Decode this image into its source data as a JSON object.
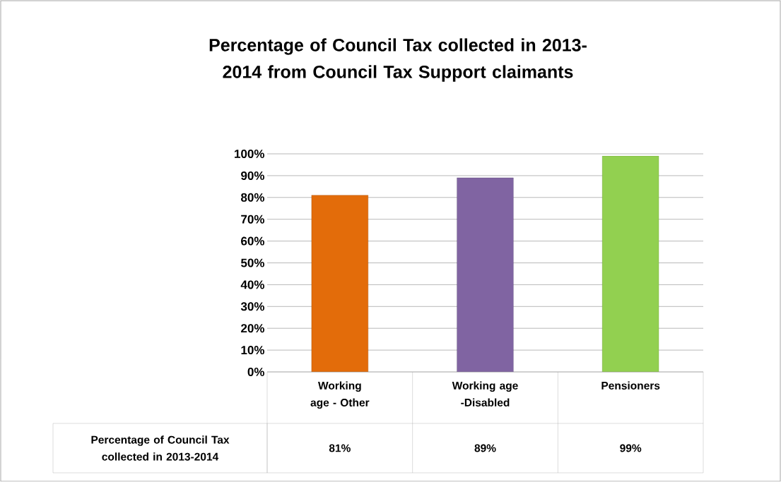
{
  "chart_data": {
    "type": "bar",
    "title": "Percentage of Council Tax collected in 2013-2014 from Council Tax Support claimants",
    "categories": [
      "Working age - Other",
      "Working age -Disabled",
      "Pensioners"
    ],
    "series": [
      {
        "name": "Percentage of Council Tax collected in 2013-2014",
        "values": [
          81,
          89,
          99
        ],
        "colors": [
          "#e36c0a",
          "#8064a2",
          "#92d050"
        ],
        "value_labels": [
          "81%",
          "89%",
          "99%"
        ]
      }
    ],
    "ylim": [
      0,
      100
    ],
    "yticks": [
      {
        "value": 0,
        "label": "0%"
      },
      {
        "value": 10,
        "label": "10%"
      },
      {
        "value": 20,
        "label": "20%"
      },
      {
        "value": 30,
        "label": "30%"
      },
      {
        "value": 40,
        "label": "40%"
      },
      {
        "value": 50,
        "label": "50%"
      },
      {
        "value": 60,
        "label": "60%"
      },
      {
        "value": 70,
        "label": "70%"
      },
      {
        "value": 80,
        "label": "80%"
      },
      {
        "value": 90,
        "label": "90%"
      },
      {
        "value": 100,
        "label": "100%"
      }
    ],
    "grid": "y"
  }
}
